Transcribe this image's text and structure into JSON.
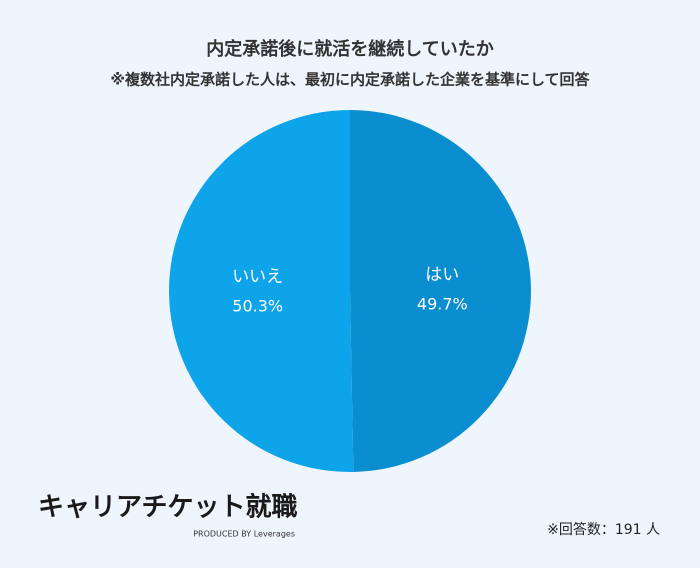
{
  "chart_data": {
    "type": "pie",
    "title": "内定承諾後に就活を継続していたか",
    "subtitle": "※複数社内定承諾した人は、最初に内定承諾した企業を基準にして回答",
    "categories": [
      "はい",
      "いいえ"
    ],
    "values": [
      49.7,
      50.3
    ],
    "value_labels": [
      "49.7%",
      "50.3%"
    ],
    "colors": [
      "#0b8ed0",
      "#0ea4e9"
    ],
    "note": "※回答数：191 人"
  },
  "logo": {
    "name": "キャリアチケット就職",
    "tagline": "PRODUCED BY Leverages"
  }
}
